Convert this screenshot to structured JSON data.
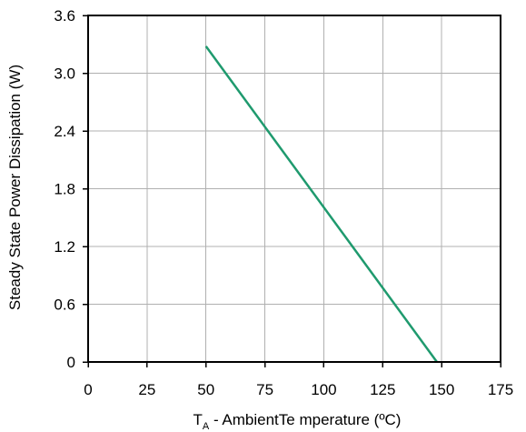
{
  "chart_data": {
    "type": "line",
    "title": "",
    "xlabel_main": "T",
    "xlabel_sub": "A",
    "xlabel_rest": " - AmbientTe mperature (ºC)",
    "ylabel": "Steady State Power Dissipation (W)",
    "xlim": [
      0,
      175
    ],
    "ylim": [
      0,
      3.6
    ],
    "x_ticks": [
      0,
      25,
      50,
      75,
      100,
      125,
      150,
      175
    ],
    "y_ticks": [
      0,
      0.6,
      1.2,
      1.8,
      2.4,
      3.0,
      3.6
    ],
    "x_tick_labels": [
      "0",
      "25",
      "50",
      "75",
      "100",
      "125",
      "150",
      "175"
    ],
    "y_tick_labels": [
      "0",
      "0.6",
      "1.2",
      "1.8",
      "2.4",
      "3.0",
      "3.6"
    ],
    "grid": true,
    "legend": "none",
    "series": [
      {
        "color": "#1f9a6e",
        "x": [
          50,
          148
        ],
        "y": [
          3.28,
          0
        ]
      }
    ]
  }
}
